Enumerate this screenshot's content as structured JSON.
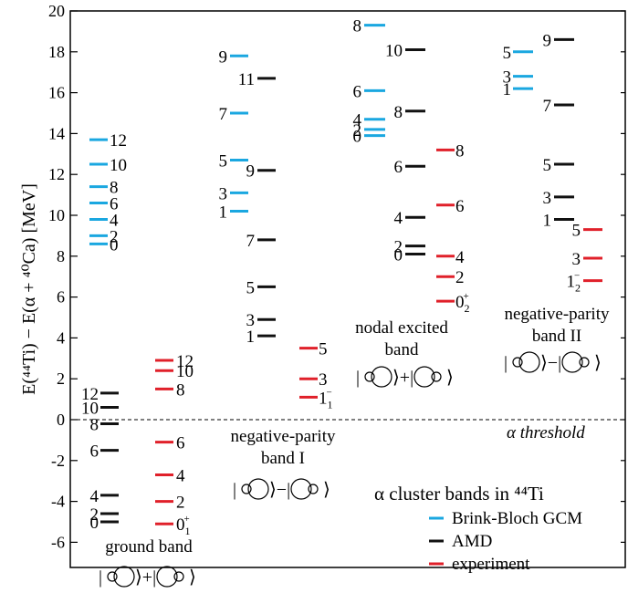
{
  "chart_data": {
    "type": "level-scheme",
    "title": "α cluster bands in ⁴⁴Ti",
    "ylabel": "E(⁴⁴Ti) − E(α + ⁴⁰Ca) [MeV]",
    "ylim": [
      -7.5,
      20
    ],
    "yticks": [
      "20",
      "18",
      "16",
      "14",
      "12",
      "10",
      "8",
      "6",
      "4",
      "2",
      "0",
      "-2",
      "-4",
      "-6"
    ],
    "threshold": {
      "y": 0,
      "label": "α threshold"
    },
    "colors": {
      "GCM": "#1aa7e0",
      "AMD": "#111111",
      "EXP": "#e0202a"
    },
    "legend": [
      {
        "key": "GCM",
        "label": "Brink-Bloch GCM"
      },
      {
        "key": "AMD",
        "label": "AMD"
      },
      {
        "key": "EXP",
        "label": "experiment"
      }
    ],
    "band_labels": [
      {
        "lines": [
          "ground band"
        ],
        "ket": [
          "|",
          "⟩+|",
          "⟩"
        ]
      },
      {
        "lines": [
          "negative-parity",
          "band I"
        ],
        "ket": [
          "|",
          "⟩−|",
          "⟩"
        ]
      },
      {
        "lines": [
          "nodal excited",
          "band"
        ],
        "ket": [
          "|",
          "⟩+|",
          "⟩"
        ]
      },
      {
        "lines": [
          "negative-parity",
          "band II"
        ],
        "ket": [
          "|",
          "⟩−|",
          "⟩"
        ]
      }
    ],
    "series": [
      {
        "band": "ground band",
        "model": "GCM",
        "levels": [
          {
            "J": "0",
            "E": 8.6
          },
          {
            "J": "2",
            "E": 9.0
          },
          {
            "J": "4",
            "E": 9.8
          },
          {
            "J": "6",
            "E": 10.6
          },
          {
            "J": "8",
            "E": 11.4
          },
          {
            "J": "10",
            "E": 12.5
          },
          {
            "J": "12",
            "E": 13.7
          }
        ]
      },
      {
        "band": "ground band",
        "model": "AMD",
        "levels": [
          {
            "J": "0",
            "E": -5.0
          },
          {
            "J": "2",
            "E": -4.6
          },
          {
            "J": "4",
            "E": -3.7
          },
          {
            "J": "6",
            "E": -1.5
          },
          {
            "J": "8",
            "E": -0.2
          },
          {
            "J": "10",
            "E": 0.6
          },
          {
            "J": "12",
            "E": 1.3
          }
        ]
      },
      {
        "band": "ground band",
        "model": "EXP",
        "levels": [
          {
            "J": "0",
            "Jsub": "1",
            "Jsup": "+",
            "E": -5.1
          },
          {
            "J": "2",
            "E": -4.0
          },
          {
            "J": "4",
            "E": -2.7
          },
          {
            "J": "6",
            "E": -1.1
          },
          {
            "J": "8",
            "E": 1.5
          },
          {
            "J": "10",
            "E": 2.4
          },
          {
            "J": "12",
            "E": 2.9
          }
        ]
      },
      {
        "band": "negative-parity band I",
        "model": "GCM",
        "levels": [
          {
            "J": "1",
            "E": 10.2
          },
          {
            "J": "3",
            "E": 11.1
          },
          {
            "J": "5",
            "E": 12.7
          },
          {
            "J": "7",
            "E": 15.0
          },
          {
            "J": "9",
            "E": 17.8
          }
        ]
      },
      {
        "band": "negative-parity band I",
        "model": "AMD",
        "levels": [
          {
            "J": "1",
            "E": 4.1
          },
          {
            "J": "3",
            "E": 4.9
          },
          {
            "J": "5",
            "E": 6.5
          },
          {
            "J": "7",
            "E": 8.8
          },
          {
            "J": "9",
            "E": 12.2
          },
          {
            "J": "11",
            "E": 16.7
          }
        ]
      },
      {
        "band": "negative-parity band I",
        "model": "EXP",
        "levels": [
          {
            "J": "1",
            "Jsub": "1",
            "Jsup": "−",
            "E": 1.1
          },
          {
            "J": "3",
            "E": 2.0
          },
          {
            "J": "5",
            "E": 3.5
          }
        ]
      },
      {
        "band": "nodal excited band",
        "model": "GCM",
        "levels": [
          {
            "J": "0",
            "E": 13.9
          },
          {
            "J": "2",
            "E": 14.2
          },
          {
            "J": "4",
            "E": 14.7
          },
          {
            "J": "6",
            "E": 16.1
          },
          {
            "J": "8",
            "E": 19.3
          }
        ]
      },
      {
        "band": "nodal excited band",
        "model": "AMD",
        "levels": [
          {
            "J": "0",
            "E": 8.1
          },
          {
            "J": "2",
            "E": 8.5
          },
          {
            "J": "4",
            "E": 9.9
          },
          {
            "J": "6",
            "E": 12.4
          },
          {
            "J": "8",
            "E": 15.1
          },
          {
            "J": "10",
            "E": 18.1
          }
        ]
      },
      {
        "band": "nodal excited band",
        "model": "EXP",
        "levels": [
          {
            "J": "0",
            "Jsub": "2",
            "Jsup": "+",
            "E": 5.8
          },
          {
            "J": "2",
            "E": 7.0
          },
          {
            "J": "4",
            "E": 8.0
          },
          {
            "J": "6",
            "E": 10.5
          },
          {
            "J": "8",
            "E": 13.2
          }
        ]
      },
      {
        "band": "negative-parity band II",
        "model": "GCM",
        "levels": [
          {
            "J": "1",
            "E": 16.2
          },
          {
            "J": "3",
            "E": 16.8
          },
          {
            "J": "5",
            "E": 18.0
          }
        ]
      },
      {
        "band": "negative-parity band II",
        "model": "AMD",
        "levels": [
          {
            "J": "1",
            "E": 9.8
          },
          {
            "J": "3",
            "E": 10.9
          },
          {
            "J": "5",
            "E": 12.5
          },
          {
            "J": "7",
            "E": 15.4
          },
          {
            "J": "9",
            "E": 18.6
          }
        ]
      },
      {
        "band": "negative-parity band II",
        "model": "EXP",
        "levels": [
          {
            "J": "1",
            "Jsub": "2",
            "Jsup": "−",
            "E": 6.8
          },
          {
            "J": "3",
            "E": 7.9
          },
          {
            "J": "5",
            "E": 9.3
          }
        ]
      }
    ]
  }
}
